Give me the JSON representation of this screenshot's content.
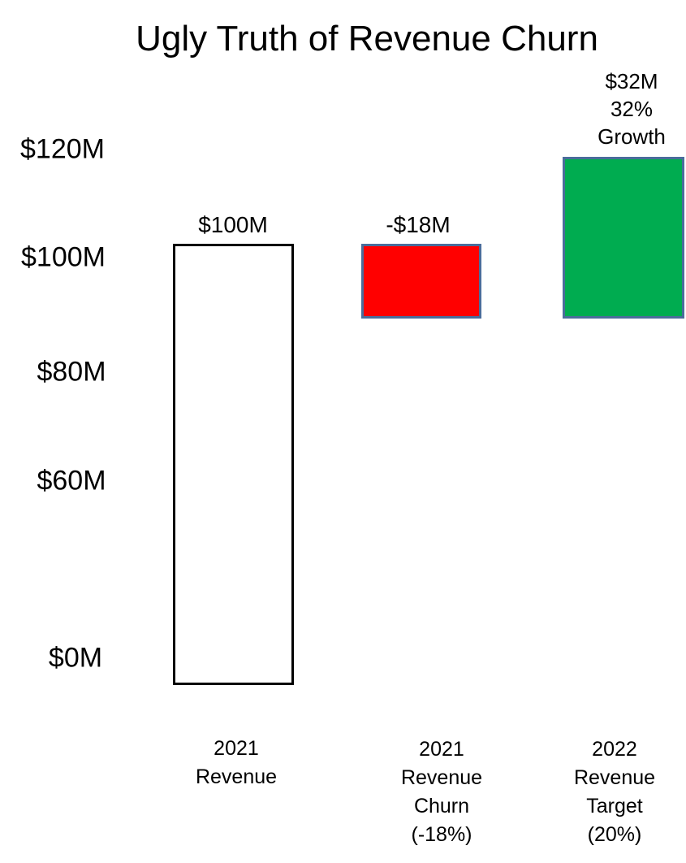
{
  "chart_data": {
    "type": "bar",
    "title": "Ugly Truth of Revenue Churn",
    "xlabel": "",
    "ylabel": "",
    "unit": "$M (USD millions)",
    "axis": {
      "ytick_labels": [
        "$120M",
        "$100M",
        "$80M",
        "$60M",
        "$0M"
      ],
      "ytick_values": [
        120,
        100,
        80,
        60,
        0
      ],
      "ylim": [
        0,
        130
      ],
      "grid": "off",
      "axis_lines": "none"
    },
    "categories": [
      "2021 Revenue",
      "2021 Revenue Churn (-18%)",
      "2022 Revenue Target (20%)"
    ],
    "values": [
      100,
      -18,
      32
    ],
    "bars": [
      {
        "category": "2021 Revenue",
        "category_lines": [
          "2021",
          "Revenue"
        ],
        "value": 100,
        "value_label": "$100M",
        "span": [
          0,
          100
        ],
        "fill": "#ffffff",
        "border": "#000000"
      },
      {
        "category": "2021 Revenue Churn (-18%)",
        "category_lines": [
          "2021",
          "Revenue",
          "Churn",
          "(-18%)"
        ],
        "value": -18,
        "value_label": "-$18M",
        "span": [
          82,
          100
        ],
        "fill": "#ff0000",
        "border": "#4a6d9b"
      },
      {
        "category": "2022 Revenue Target (20%)",
        "category_lines": [
          "2022",
          "Revenue",
          "Target",
          "(20%)"
        ],
        "value": 32,
        "value_label_lines": [
          "$32M",
          "32%",
          "Growth"
        ],
        "span": [
          90,
          122
        ],
        "fill": "#00ac50",
        "border": "#4a6d9b"
      }
    ],
    "colors": {
      "background": "#ffffff",
      "text": "#000000",
      "churn_red": "#ff0000",
      "growth_green": "#00ac50",
      "colored_bar_outline": "#4a6d9b",
      "revenue_bar_outline": "#000000"
    },
    "legend": "none"
  }
}
